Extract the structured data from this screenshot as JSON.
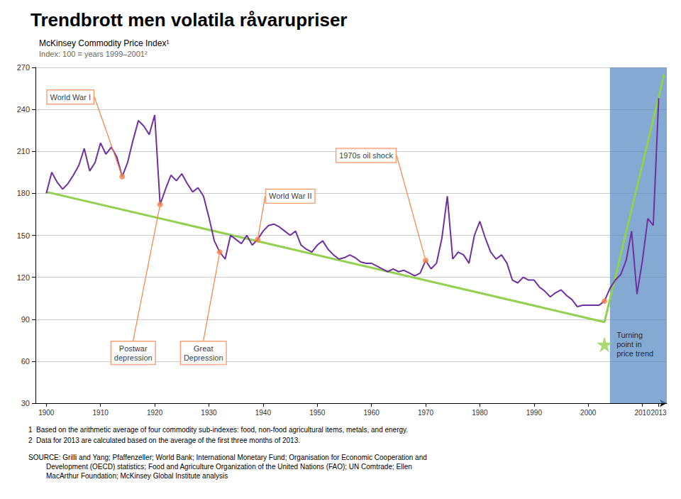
{
  "chart_data": {
    "type": "line",
    "title": "Trendbrott men volatila råvarupriser",
    "subtitle": [
      "McKinsey Commodity Price Index¹",
      "Index: 100 = years 1999–2001²"
    ],
    "footnotes": [
      "1  Based on the arithmetic average of four commodity sub-indexes: food, non-food agricultural items, metals, and energy.",
      "2  Data for 2013 are calculated based on the average of the first three months of 2013."
    ],
    "source": "SOURCE: Grilli and Yang; Pfaffenzeller; World Bank; International Monetary Fund; Organisation for Economic Cooperation and\n         Development (OECD) statistics; Food and Agriculture Organization of the United Nations (FAO); UN Comtrade; Ellen\n         MacArthur Foundation; McKinsey Global Institute analysis",
    "xlim": [
      1898,
      2014.5
    ],
    "xticks": [
      1900,
      1910,
      1920,
      1930,
      1940,
      1950,
      1960,
      1970,
      1980,
      1990,
      2000,
      2010,
      2013
    ],
    "ylim": [
      30,
      270
    ],
    "yticks": [
      30,
      60,
      90,
      120,
      150,
      180,
      210,
      240,
      270
    ],
    "grid": true,
    "highlight": {
      "x": [
        2004,
        2014.5
      ],
      "color": "#5b8ec4"
    },
    "series": [
      {
        "type": "line",
        "color": "#7030a0",
        "x": [
          1900,
          1901,
          1902,
          1903,
          1904,
          1905,
          1906,
          1907,
          1908,
          1909,
          1910,
          1911,
          1912,
          1913,
          1914,
          1915,
          1916,
          1917,
          1918,
          1919,
          1920,
          1921,
          1922,
          1923,
          1924,
          1925,
          1926,
          1927,
          1928,
          1929,
          1930,
          1931,
          1932,
          1933,
          1934,
          1935,
          1936,
          1937,
          1938,
          1939,
          1940,
          1941,
          1942,
          1943,
          1944,
          1945,
          1946,
          1947,
          1948,
          1949,
          1950,
          1951,
          1952,
          1953,
          1954,
          1955,
          1956,
          1957,
          1958,
          1959,
          1960,
          1961,
          1962,
          1963,
          1964,
          1965,
          1966,
          1967,
          1968,
          1969,
          1970,
          1971,
          1972,
          1973,
          1974,
          1975,
          1976,
          1977,
          1978,
          1979,
          1980,
          1981,
          1982,
          1983,
          1984,
          1985,
          1986,
          1987,
          1988,
          1989,
          1990,
          1991,
          1992,
          1993,
          1994,
          1995,
          1996,
          1997,
          1998,
          1999,
          2000,
          2001,
          2002,
          2003,
          2004,
          2005,
          2006,
          2007,
          2008,
          2009,
          2010,
          2011,
          2012,
          2013
        ],
        "values": [
          180,
          195,
          188,
          183,
          187,
          193,
          200,
          212,
          196,
          202,
          216,
          208,
          213,
          206,
          192,
          202,
          218,
          232,
          228,
          222,
          236,
          172,
          183,
          193,
          189,
          194,
          187,
          181,
          184,
          178,
          163,
          146,
          138,
          133,
          150,
          147,
          144,
          150,
          143,
          147,
          153,
          157,
          158,
          156,
          153,
          150,
          153,
          143,
          140,
          138,
          143,
          146,
          140,
          136,
          133,
          134,
          136,
          134,
          131,
          130,
          130,
          128,
          126,
          124,
          126,
          124,
          125,
          123,
          121,
          123,
          132,
          126,
          130,
          148,
          178,
          133,
          138,
          136,
          130,
          150,
          160,
          148,
          138,
          133,
          136,
          130,
          118,
          116,
          120,
          118,
          118,
          113,
          110,
          106,
          109,
          111,
          107,
          104,
          99,
          100,
          100,
          100,
          100,
          103,
          112,
          118,
          122,
          132,
          153,
          108,
          132,
          162,
          157,
          248
        ]
      },
      {
        "type": "line",
        "color": "#92d050",
        "x": [
          1900,
          2003,
          2014
        ],
        "values": [
          181,
          88,
          265
        ]
      },
      {
        "type": "scatter",
        "marker": "circle",
        "color": "#f4824a",
        "x": [
          1914,
          1921,
          1932,
          1939,
          1970,
          2003
        ],
        "values": [
          192,
          172,
          138,
          147,
          132,
          103
        ],
        "annotations": [
          "World War I",
          "Postwar\ndepression",
          "Great\nDepression",
          "World War II",
          "1970s oil shock",
          null
        ]
      },
      {
        "type": "scatter",
        "marker": "star",
        "color": "#92d050",
        "x": [
          2003
        ],
        "values": [
          72
        ],
        "annotations": [
          "Turning\npoint in\nprice trend"
        ]
      }
    ]
  }
}
